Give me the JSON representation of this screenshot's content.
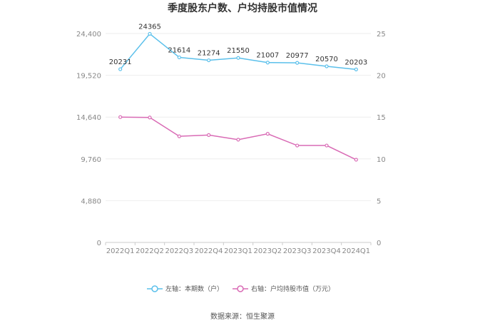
{
  "chart_data": {
    "type": "line",
    "title": "季度股东户数、户均持股市值情况",
    "categories": [
      "2022Q1",
      "2022Q2",
      "2022Q3",
      "2022Q4",
      "2023Q1",
      "2023Q2",
      "2023Q3",
      "2023Q4",
      "2024Q1"
    ],
    "left_axis": {
      "min": 0,
      "max": 24400,
      "ticks": [
        "0",
        "4,880",
        "9,760",
        "14,640",
        "19,520",
        "24,400"
      ]
    },
    "right_axis": {
      "min": 0,
      "max": 25,
      "ticks": [
        "0",
        "5",
        "10",
        "15",
        "20",
        "25"
      ]
    },
    "series": [
      {
        "name": "左轴：本期数（户）",
        "axis": "left",
        "color": "#5bc0eb",
        "values": [
          20231,
          24365,
          21614,
          21274,
          21550,
          21007,
          20977,
          20570,
          20203
        ],
        "labels": [
          "20231",
          "24365",
          "21614",
          "21274",
          "21550",
          "21007",
          "20977",
          "20570",
          "20203"
        ]
      },
      {
        "name": "右轴：户均持股市值（万元）",
        "axis": "right",
        "color": "#d96bb5",
        "values": [
          15.0,
          14.95,
          12.7,
          12.85,
          12.3,
          13.0,
          11.6,
          11.6,
          9.9
        ]
      }
    ],
    "grid": true,
    "legend_position": "bottom"
  },
  "footer": {
    "source": "数据来源：恒生聚源"
  }
}
